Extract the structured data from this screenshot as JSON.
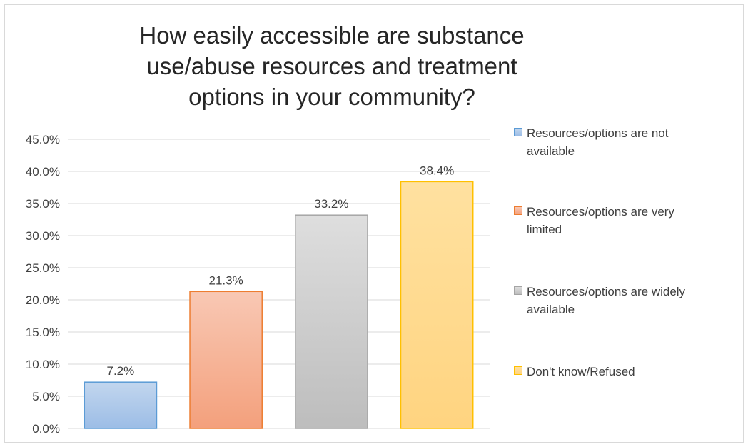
{
  "chart_data": {
    "type": "bar",
    "title": "How easily accessible are substance use/abuse resources and treatment options in your community?",
    "categories": [
      "Resources/options are not available",
      "Resources/options are very limited",
      "Resources/options are widely available",
      "Don't know/Refused"
    ],
    "values": [
      7.2,
      21.3,
      33.2,
      38.4
    ],
    "data_labels": [
      "7.2%",
      "21.3%",
      "33.2%",
      "38.4%"
    ],
    "ylim": [
      0,
      45
    ],
    "y_ticks": [
      0,
      5,
      10,
      15,
      20,
      25,
      30,
      35,
      40,
      45
    ],
    "y_tick_labels": [
      "0.0%",
      "5.0%",
      "10.0%",
      "15.0%",
      "20.0%",
      "25.0%",
      "30.0%",
      "35.0%",
      "40.0%",
      "45.0%"
    ],
    "xlabel": "",
    "ylabel": "",
    "grid": true,
    "legend_position": "right",
    "colors": [
      {
        "fill_top": "#c2d6ee",
        "fill_bottom": "#9cbde6",
        "stroke": "#5b9bd5"
      },
      {
        "fill_top": "#f8c8b4",
        "fill_bottom": "#f4a07c",
        "stroke": "#ed7d31"
      },
      {
        "fill_top": "#dedede",
        "fill_bottom": "#bdbdbd",
        "stroke": "#a5a5a5"
      },
      {
        "fill_top": "#ffe1a0",
        "fill_bottom": "#ffd480",
        "stroke": "#ffc000"
      }
    ]
  },
  "legend": {
    "items": [
      {
        "label": "Resources/options are not\navailable"
      },
      {
        "label": "Resources/options are very\nlimited"
      },
      {
        "label": "Resources/options are widely\navailable"
      },
      {
        "label": "Don't know/Refused"
      }
    ]
  }
}
